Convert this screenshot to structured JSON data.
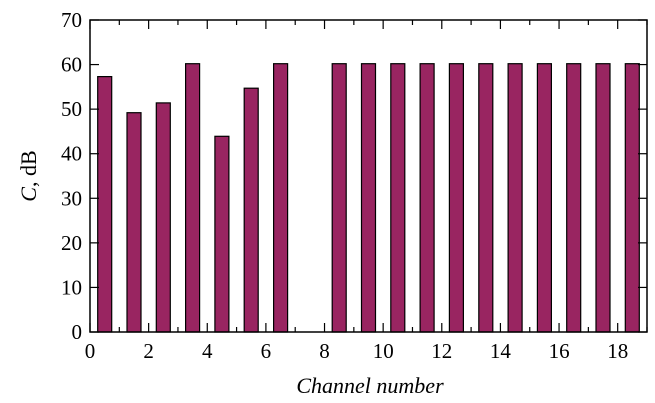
{
  "chart_data": {
    "type": "bar",
    "xlabel": "Channel number",
    "ylabel": "C, dB",
    "ylabel_var": "C",
    "ylabel_unit": ", dB",
    "xlim": [
      0,
      19
    ],
    "ylim": [
      0,
      70
    ],
    "xticks": [
      0,
      2,
      4,
      6,
      8,
      10,
      12,
      14,
      16,
      18
    ],
    "xtick_labels": [
      "0",
      "2",
      "4",
      "6",
      "8",
      "10",
      "12",
      "14",
      "16",
      "18"
    ],
    "yticks": [
      0,
      10,
      20,
      30,
      40,
      50,
      60,
      70
    ],
    "ytick_labels": [
      "0",
      "10",
      "20",
      "30",
      "40",
      "50",
      "60",
      "70"
    ],
    "bar_color": "#992561",
    "grid": false,
    "bars": [
      {
        "x": 1,
        "value": 57.3
      },
      {
        "x": 2,
        "value": 49.2
      },
      {
        "x": 3,
        "value": 51.4
      },
      {
        "x": 4,
        "value": 60.2
      },
      {
        "x": 5,
        "value": 43.9
      },
      {
        "x": 6,
        "value": 54.7
      },
      {
        "x": 7,
        "value": 60.2
      },
      {
        "x": 8,
        "value": 0
      },
      {
        "x": 9,
        "value": 60.2
      },
      {
        "x": 10,
        "value": 60.2
      },
      {
        "x": 11,
        "value": 60.2
      },
      {
        "x": 12,
        "value": 60.2
      },
      {
        "x": 13,
        "value": 60.2
      },
      {
        "x": 14,
        "value": 60.2
      },
      {
        "x": 15,
        "value": 60.2
      },
      {
        "x": 16,
        "value": 60.2
      },
      {
        "x": 17,
        "value": 60.2
      },
      {
        "x": 18,
        "value": 60.2
      },
      {
        "x": 19,
        "value": 60.2
      }
    ]
  }
}
